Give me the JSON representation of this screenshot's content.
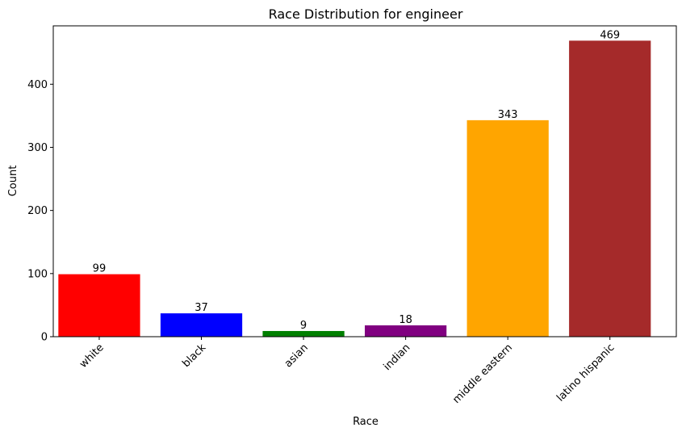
{
  "chart_data": {
    "type": "bar",
    "title": "Race Distribution for engineer",
    "xlabel": "Race",
    "ylabel": "Count",
    "categories": [
      "white",
      "black",
      "asian",
      "indian",
      "middle eastern",
      "latino hispanic"
    ],
    "values": [
      99,
      37,
      9,
      18,
      343,
      469
    ],
    "data_labels": [
      "99",
      "37",
      "9",
      "18",
      "343",
      "469"
    ],
    "colors": [
      "#ff0000",
      "#0000ff",
      "#008000",
      "#800080",
      "#ffa500",
      "#a52a2a"
    ],
    "ylim": [
      0,
      492.5
    ],
    "yticks": [
      0,
      100,
      200,
      300,
      400
    ],
    "ytick_labels": [
      "0",
      "100",
      "200",
      "300",
      "400"
    ],
    "grid": false,
    "legend": "none",
    "xtick_rotation": "45"
  }
}
